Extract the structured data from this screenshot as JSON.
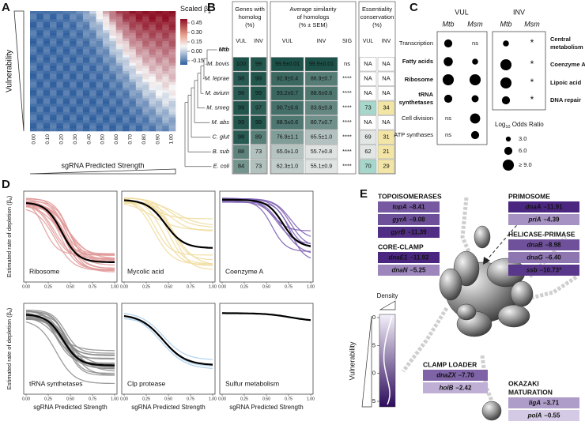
{
  "panel_a": {
    "letter": "A",
    "y_label": "Vulnerability",
    "x_label": "sgRNA Predicted Strength",
    "x_ticks": [
      "0.00",
      "0.10",
      "0.20",
      "0.30",
      "0.40",
      "0.50",
      "0.60",
      "0.70",
      "0.80",
      "0.90",
      "1.00"
    ],
    "colorbar_title": "Scaled β",
    "colorbar_title_sub": "a",
    "colorbar_ticks": [
      "0.45",
      "0.30",
      "0.15",
      "0.00",
      "-0.15"
    ]
  },
  "panel_b": {
    "letter": "B",
    "reference": "Mtb",
    "column_groups": [
      {
        "title": [
          "Genes with",
          "homolog",
          "(%)"
        ],
        "columns": [
          "VUL",
          "INV"
        ]
      },
      {
        "title": [
          "Average similarity",
          "of homologs",
          "(% ± SEM)"
        ],
        "columns": [
          "VUL",
          "INV",
          "SIG"
        ]
      },
      {
        "title": [
          "Essentiality",
          "conservation",
          "(%)"
        ],
        "columns": [
          "VUL",
          "INV"
        ]
      }
    ],
    "rows": [
      {
        "species": "M. bovis",
        "cells": [
          "100",
          "99",
          "99.9±0.01",
          "99.9±0.01",
          "ns",
          "NA",
          "NA"
        ]
      },
      {
        "species": "M. leprae",
        "cells": [
          "98",
          "99",
          "92.9±0.4",
          "86.9±0.7",
          "****",
          "NA",
          "NA"
        ]
      },
      {
        "species": "M. avium",
        "cells": [
          "98",
          "99",
          "93.2±0.7",
          "88.6±0.6",
          "****",
          "NA",
          "NA"
        ]
      },
      {
        "species": "M. smeg",
        "cells": [
          "99",
          "97",
          "90.7±0.6",
          "83.6±0.8",
          "****",
          "73",
          "34"
        ]
      },
      {
        "species": "M. abs",
        "cells": [
          "99",
          "99",
          "88.5±0.6",
          "80.7±0.7",
          "****",
          "NA",
          "NA"
        ]
      },
      {
        "species": "C. glut",
        "cells": [
          "98",
          "89",
          "76.9±1.1",
          "65.5±1.0",
          "****",
          "69",
          "31"
        ]
      },
      {
        "species": "B. sub",
        "cells": [
          "88",
          "73",
          "65.0±1.0",
          "55.7±0.8",
          "****",
          "62",
          "21"
        ]
      },
      {
        "species": "E. coli",
        "cells": [
          "84",
          "73",
          "62.3±1.0",
          "55.1±0.9",
          "****",
          "70",
          "29"
        ]
      }
    ]
  },
  "panel_c": {
    "letter": "C",
    "groups": [
      {
        "title": "VUL",
        "columns": [
          "Mtb",
          "Msm"
        ],
        "rows": [
          {
            "label": [
              "Transcription"
            ],
            "bold": false,
            "values": [
              6,
              "ns"
            ]
          },
          {
            "label": [
              "Fatty acids"
            ],
            "bold": true,
            "values": [
              7,
              4
            ]
          },
          {
            "label": [
              "Ribosome"
            ],
            "bold": true,
            "values": [
              9,
              9
            ]
          },
          {
            "label": [
              "tRNA",
              "synthetases"
            ],
            "bold": true,
            "values": [
              6,
              5
            ]
          },
          {
            "label": [
              "Cell division"
            ],
            "bold": false,
            "values": [
              "ns",
              8
            ]
          },
          {
            "label": [
              "ATP synthases"
            ],
            "bold": false,
            "values": [
              "ns",
              6
            ]
          }
        ]
      },
      {
        "title": "INV",
        "columns": [
          "Mtb",
          "Msm"
        ],
        "rows": [
          {
            "label": [
              "Central",
              "metabolism"
            ],
            "bold": true,
            "values": [
              4,
              "*"
            ]
          },
          {
            "label": [
              "Coenzyme A"
            ],
            "bold": true,
            "values": [
              9,
              "*"
            ]
          },
          {
            "label": [
              "Lipoic acid"
            ],
            "bold": true,
            "values": [
              9,
              "*"
            ]
          },
          {
            "label": [
              "DNA repair"
            ],
            "bold": true,
            "values": [
              6,
              "*"
            ]
          }
        ]
      }
    ],
    "legend_title": "Log",
    "legend_title_sub": "10",
    "legend_title_rest": " Odds Ratio",
    "legend": [
      {
        "value": 3,
        "label": "3.0"
      },
      {
        "value": 6,
        "label": "6.0"
      },
      {
        "value": 9,
        "label": "≥ 9.0"
      }
    ]
  },
  "panel_d": {
    "letter": "D",
    "y_label": "Estimated rate of depletion (β",
    "y_label_sub": "a",
    "y_label_end": ")",
    "x_label": "sgRNA Predicted Strength",
    "x_ticks": [
      "0.00",
      "0.25",
      "0.50",
      "0.75",
      "1.00"
    ],
    "panels": [
      {
        "label": "Ribosome",
        "color": "#e09a9a"
      },
      {
        "label": "Mycolic acid",
        "color": "#f0dc9c"
      },
      {
        "label": "Coenzyme A",
        "color": "#7a5cb2"
      },
      {
        "label": "tRNA synthetases",
        "color": "#8a8a8a"
      },
      {
        "label": "Clp protease",
        "color": "#a9cdea"
      },
      {
        "label": "Sulfur metabolism",
        "color": "#a9d9c6"
      }
    ]
  },
  "panel_e": {
    "letter": "E",
    "groups": [
      {
        "title": [
          "TOPOISOMERASES"
        ],
        "genes": [
          {
            "name": "topA",
            "value": "–8.41"
          },
          {
            "name": "gyrA",
            "value": "–9.08"
          },
          {
            "name": "gyrB",
            "value": "–11.39"
          }
        ]
      },
      {
        "title": [
          "CORE-CLAMP"
        ],
        "genes": [
          {
            "name": "dnaE1",
            "value": "–11.92"
          },
          {
            "name": "dnaN",
            "value": "–5.25"
          }
        ]
      },
      {
        "title": [
          "PRIMOSOME"
        ],
        "genes": [
          {
            "name": "dnaA",
            "value": "–11.91"
          },
          {
            "name": "priA",
            "value": "–4.39"
          }
        ]
      },
      {
        "title": [
          "HELICASE-PRIMASE"
        ],
        "genes": [
          {
            "name": "dnaB",
            "value": "–8.98"
          },
          {
            "name": "dnaG",
            "value": "–6.40"
          },
          {
            "name": "ssb",
            "value": "–10.73*"
          }
        ]
      },
      {
        "title": [
          "CLAMP LOADER"
        ],
        "genes": [
          {
            "name": "dnaZX",
            "value": "–7.70"
          },
          {
            "name": "holB",
            "value": "–2.42"
          }
        ]
      },
      {
        "title": [
          "OKAZAKI",
          "MATURATION"
        ],
        "genes": [
          {
            "name": "ligA",
            "value": "–3.71"
          },
          {
            "name": "polA",
            "value": "–0.55"
          }
        ]
      }
    ],
    "density_label": "Density",
    "vulnerability_label": "Vulnerability",
    "scale_ticks": [
      "0",
      "-5",
      "-10",
      "-15"
    ]
  }
}
